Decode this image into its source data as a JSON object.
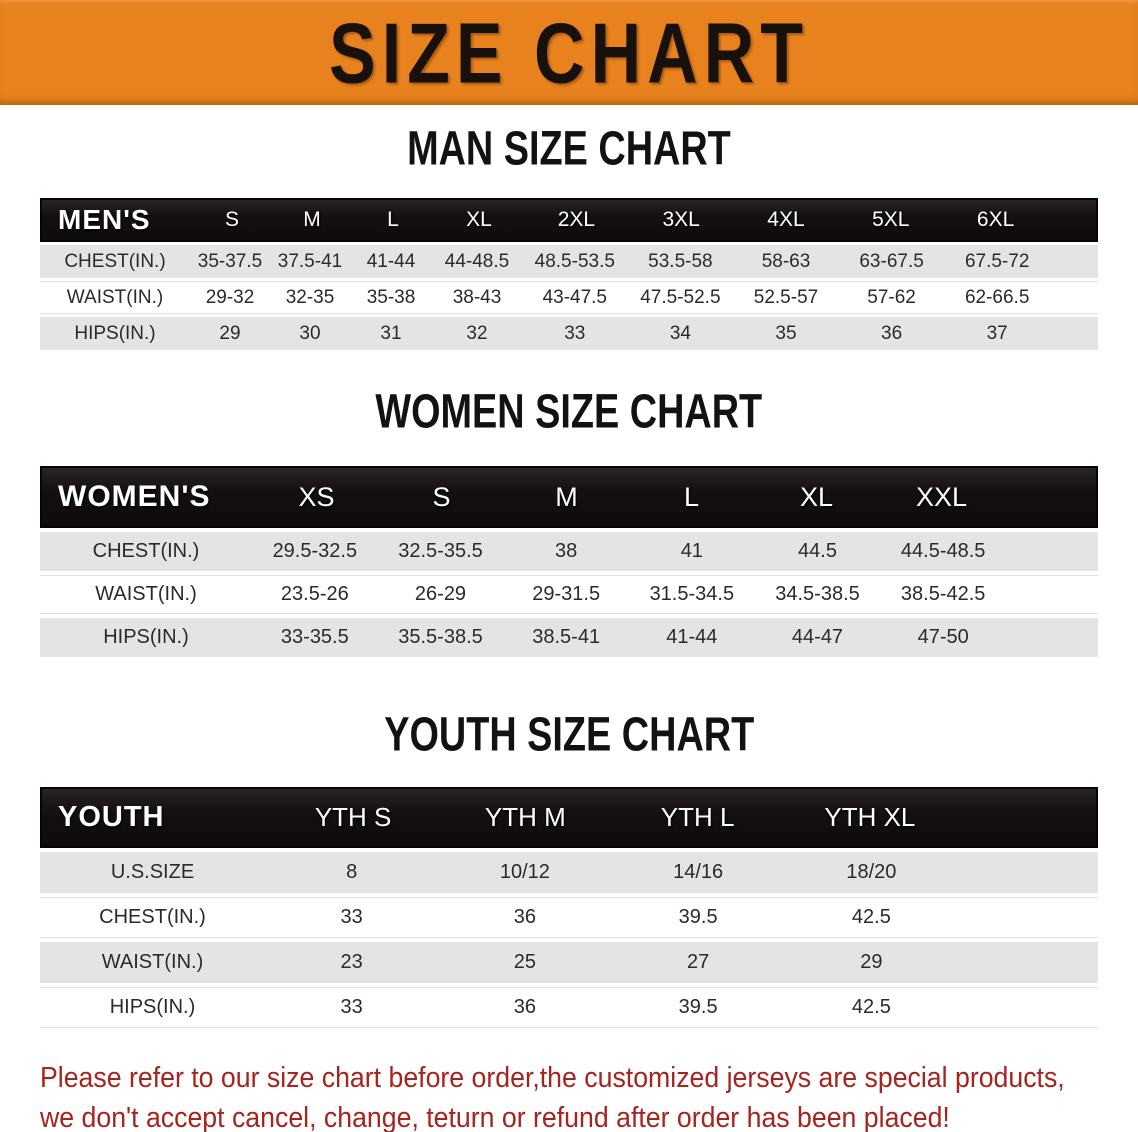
{
  "banner": {
    "title": "SIZE CHART"
  },
  "sections": [
    {
      "heading": "MAN SIZE CHART",
      "label": "MEN'S",
      "sizes": [
        "S",
        "M",
        "L",
        "XL",
        "2XL",
        "3XL",
        "4XL",
        "5XL",
        "6XL"
      ],
      "rows": [
        {
          "label": "CHEST(IN.)",
          "values": [
            "35-37.5",
            "37.5-41",
            "41-44",
            "44-48.5",
            "48.5-53.5",
            "53.5-58",
            "58-63",
            "63-67.5",
            "67.5-72"
          ]
        },
        {
          "label": "WAIST(IN.)",
          "values": [
            "29-32",
            "32-35",
            "35-38",
            "38-43",
            "43-47.5",
            "47.5-52.5",
            "52.5-57",
            "57-62",
            "62-66.5"
          ]
        },
        {
          "label": "HIPS(IN.)",
          "values": [
            "29",
            "30",
            "31",
            "32",
            "33",
            "34",
            "35",
            "36",
            "37"
          ]
        }
      ]
    },
    {
      "heading": "WOMEN SIZE CHART",
      "label": "WOMEN'S",
      "sizes": [
        "XS",
        "S",
        "M",
        "L",
        "XL",
        "XXL"
      ],
      "rows": [
        {
          "label": "CHEST(IN.)",
          "values": [
            "29.5-32.5",
            "32.5-35.5",
            "38",
            "41",
            "44.5",
            "44.5-48.5"
          ]
        },
        {
          "label": "WAIST(IN.)",
          "values": [
            "23.5-26",
            "26-29",
            "29-31.5",
            "31.5-34.5",
            "34.5-38.5",
            "38.5-42.5"
          ]
        },
        {
          "label": "HIPS(IN.)",
          "values": [
            "33-35.5",
            "35.5-38.5",
            "38.5-41",
            "41-44",
            "44-47",
            "47-50"
          ]
        }
      ]
    },
    {
      "heading": "YOUTH SIZE CHART",
      "label": "YOUTH",
      "sizes": [
        "YTH S",
        "YTH M",
        "YTH L",
        "YTH XL"
      ],
      "rows": [
        {
          "label": "U.S.SIZE",
          "values": [
            "8",
            "10/12",
            "14/16",
            "18/20"
          ]
        },
        {
          "label": "CHEST(IN.)",
          "values": [
            "33",
            "36",
            "39.5",
            "42.5"
          ]
        },
        {
          "label": "WAIST(IN.)",
          "values": [
            "23",
            "25",
            "27",
            "29"
          ]
        },
        {
          "label": "HIPS(IN.)",
          "values": [
            "33",
            "36",
            "39.5",
            "42.5"
          ]
        }
      ]
    }
  ],
  "footer": {
    "line1": "Please refer to our size chart before order,the customized jerseys are special products,",
    "line2": "we don't accept cancel, change, teturn or refund after order has been placed!"
  },
  "colors": {
    "accent": "#E8821E",
    "headerBg": "#151010",
    "rowGray": "#E3E5E4",
    "textDark": "#2A2A2A",
    "footerRed": "#A5241E"
  }
}
